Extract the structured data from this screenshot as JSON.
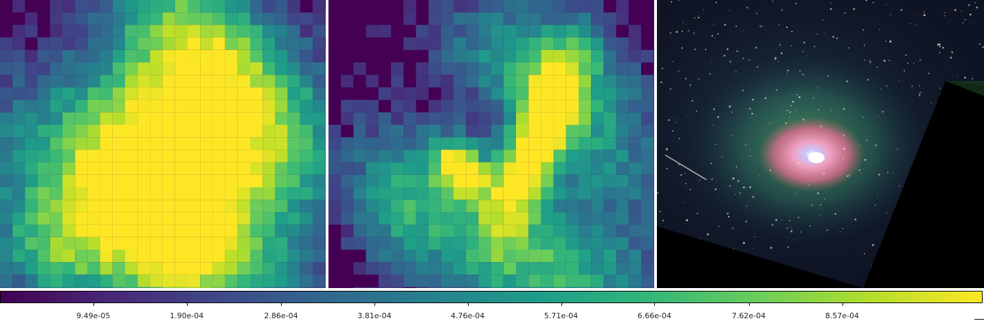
{
  "figure": {
    "panels": [
      {
        "name": "left",
        "description_kind": "pixelated-emission-map"
      },
      {
        "name": "middle",
        "description_kind": "pixelated-emission-map"
      },
      {
        "name": "right",
        "description_kind": "galaxy-composite-image"
      }
    ],
    "colormap": "viridis",
    "colors": {
      "viridis_min": "#440154",
      "viridis_max": "#fde725",
      "panel_separator": "#ffffff",
      "right_panel_background": "#000000"
    },
    "colorbar": {
      "range": [
        0,
        0.001
      ],
      "ticks": [
        {
          "value": 9.49e-05,
          "label": "9.49e-05"
        },
        {
          "value": 0.00019,
          "label": "1.90e-04"
        },
        {
          "value": 0.000286,
          "label": "2.86e-04"
        },
        {
          "value": 0.000381,
          "label": "3.81e-04"
        },
        {
          "value": 0.000476,
          "label": "4.76e-04"
        },
        {
          "value": 0.000571,
          "label": "5.71e-04"
        },
        {
          "value": 0.000666,
          "label": "6.66e-04"
        },
        {
          "value": 0.000762,
          "label": "7.62e-04"
        },
        {
          "value": 0.000857,
          "label": "8.57e-04"
        }
      ]
    }
  }
}
